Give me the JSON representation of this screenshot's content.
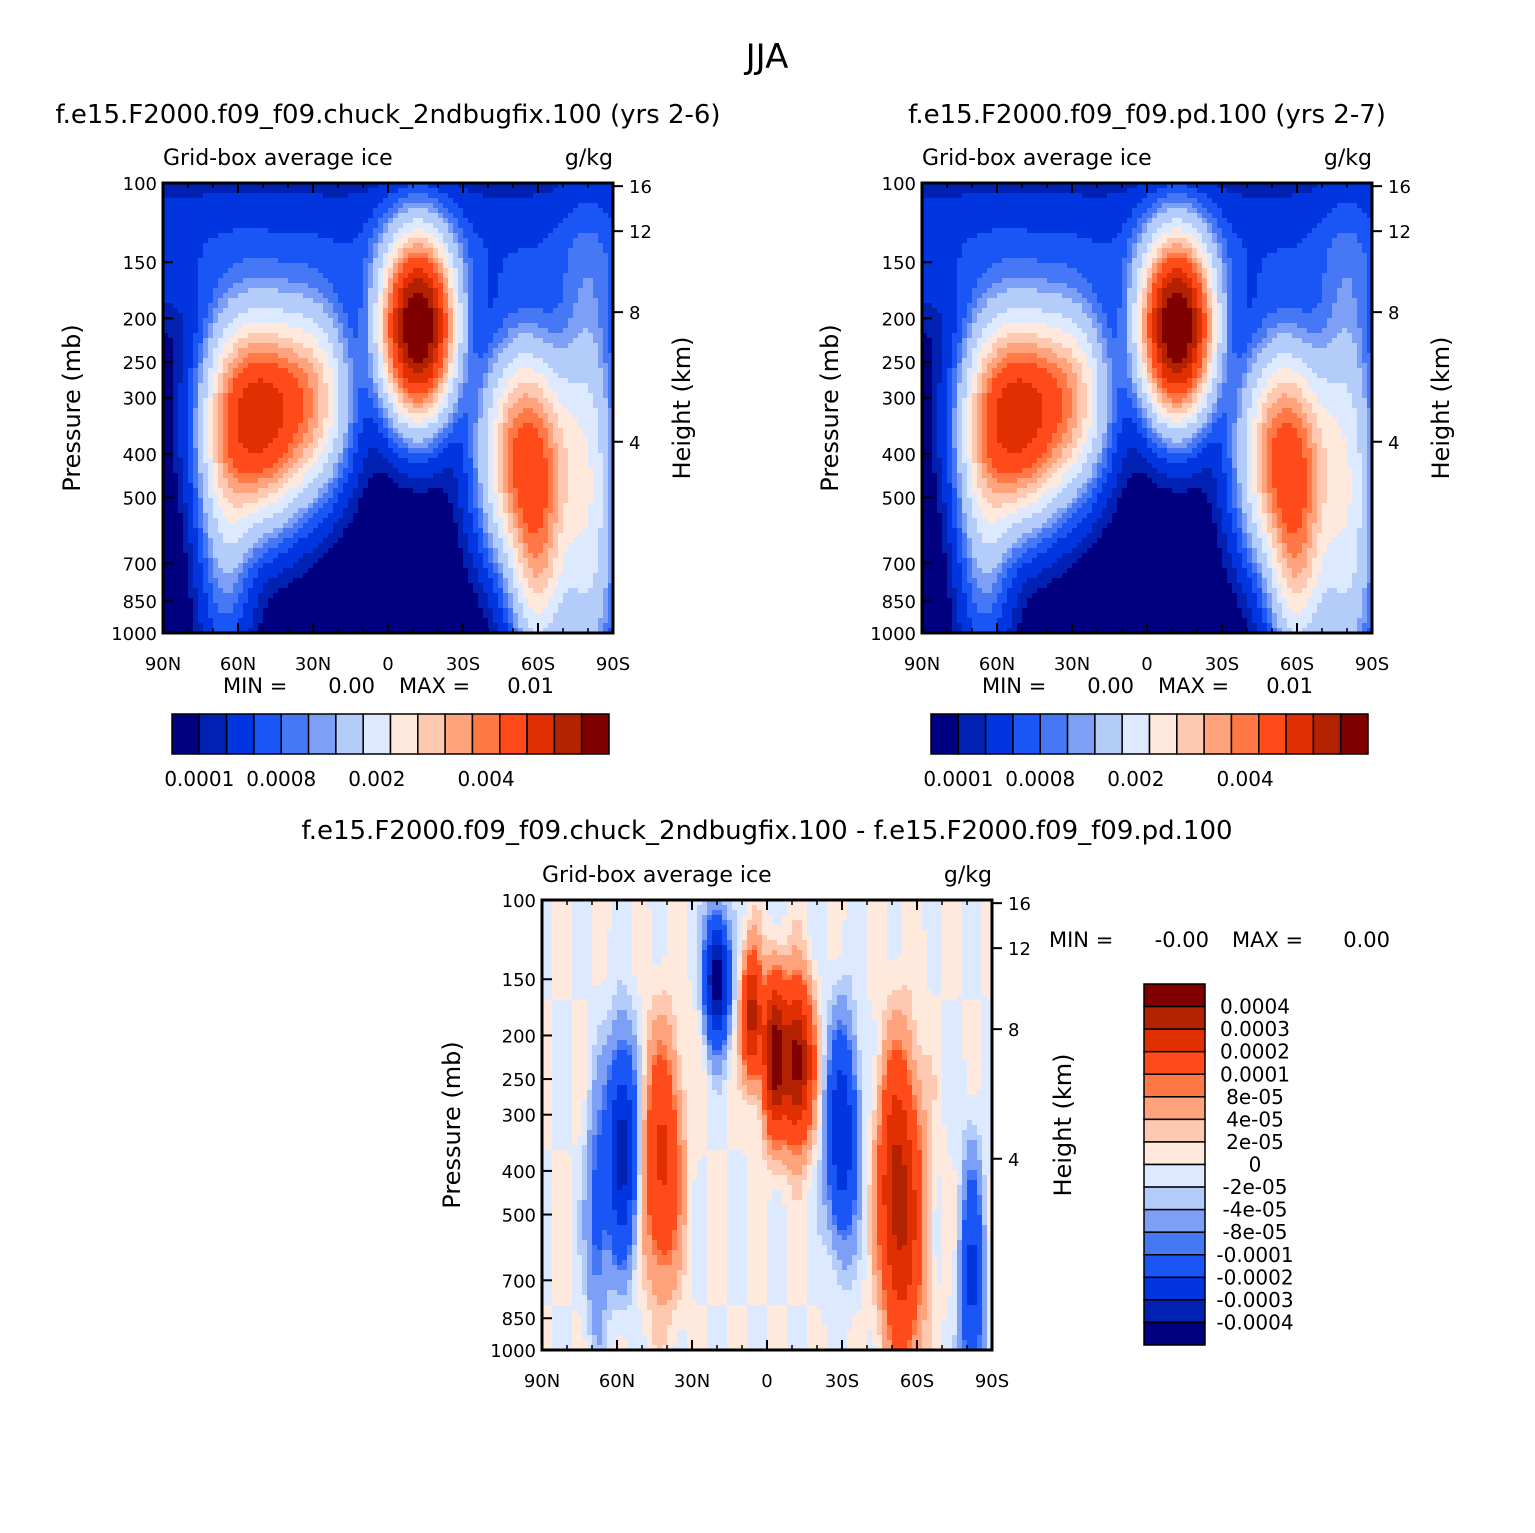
{
  "figure": {
    "title": "JJA",
    "colors": {
      "abs_scale": [
        "#000080",
        "#0021b2",
        "#0035e0",
        "#1a55f5",
        "#4678f5",
        "#7d9ff5",
        "#b4ccfa",
        "#dce9ff",
        "#ffe9dc",
        "#ffc8b0",
        "#ffa37d",
        "#ff7846",
        "#ff4b1a",
        "#e02f00",
        "#b22100",
        "#800000"
      ],
      "diff_scale": [
        "#000080",
        "#0021b2",
        "#0035e0",
        "#1a55f5",
        "#4678f5",
        "#7d9ff5",
        "#b4ccfa",
        "#dce9ff",
        "#ffe9dc",
        "#ffc8b0",
        "#ffa37d",
        "#ff7846",
        "#ff4b1a",
        "#e02f00",
        "#b22100",
        "#800000"
      ]
    }
  },
  "chart_data": [
    {
      "type": "heatmap",
      "title": "f.e15.F2000.f09_f09.chuck_2ndbugfix.100 (yrs 2-6)",
      "left_subtitle": "Grid-box average ice",
      "right_subtitle": "g/kg",
      "ylabel": "Pressure (mb)",
      "ylabel_right": "Height (km)",
      "x_ticks": [
        "90N",
        "60N",
        "30N",
        "0",
        "30S",
        "60S",
        "90S"
      ],
      "y_ticks": [
        "100",
        "150",
        "200",
        "250",
        "300",
        "400",
        "500",
        "700",
        "850",
        "1000"
      ],
      "y_right_ticks": [
        "16",
        "12",
        "8",
        "4"
      ],
      "ylim": [
        1000,
        100
      ],
      "xlim": [
        "90N",
        "90S"
      ],
      "min_label": "MIN =",
      "min_value": "0.00",
      "max_label": "MAX =",
      "max_value": "0.01",
      "colorbar_labels": [
        "0.0001",
        "0.0008",
        "0.002",
        "0.004"
      ],
      "colorbar_levels": 16,
      "features": [
        {
          "lat": -15,
          "p": 230,
          "value": 0.007
        },
        {
          "lat": 55,
          "p": 320,
          "value": 0.005
        },
        {
          "lat": -55,
          "p": 380,
          "value": 0.004
        }
      ]
    },
    {
      "type": "heatmap",
      "title": "f.e15.F2000.f09_f09.pd.100 (yrs 2-7)",
      "left_subtitle": "Grid-box average ice",
      "right_subtitle": "g/kg",
      "ylabel": "Pressure (mb)",
      "ylabel_right": "Height (km)",
      "x_ticks": [
        "90N",
        "60N",
        "30N",
        "0",
        "30S",
        "60S",
        "90S"
      ],
      "y_ticks": [
        "100",
        "150",
        "200",
        "250",
        "300",
        "400",
        "500",
        "700",
        "850",
        "1000"
      ],
      "y_right_ticks": [
        "16",
        "12",
        "8",
        "4"
      ],
      "ylim": [
        1000,
        100
      ],
      "xlim": [
        "90N",
        "90S"
      ],
      "min_label": "MIN =",
      "min_value": "0.00",
      "max_label": "MAX =",
      "max_value": "0.01",
      "colorbar_labels": [
        "0.0001",
        "0.0008",
        "0.002",
        "0.004"
      ],
      "colorbar_levels": 16,
      "features": [
        {
          "lat": -15,
          "p": 230,
          "value": 0.007
        },
        {
          "lat": 55,
          "p": 320,
          "value": 0.005
        },
        {
          "lat": -55,
          "p": 380,
          "value": 0.004
        }
      ]
    },
    {
      "type": "heatmap",
      "title": "f.e15.F2000.f09_f09.chuck_2ndbugfix.100 - f.e15.F2000.f09_f09.pd.100",
      "left_subtitle": "Grid-box average ice",
      "right_subtitle": "g/kg",
      "ylabel": "Pressure (mb)",
      "ylabel_right": "Height (km)",
      "x_ticks": [
        "90N",
        "60N",
        "30N",
        "0",
        "30S",
        "60S",
        "90S"
      ],
      "y_ticks": [
        "100",
        "150",
        "200",
        "250",
        "300",
        "400",
        "500",
        "700",
        "850",
        "1000"
      ],
      "y_right_ticks": [
        "16",
        "12",
        "8",
        "4"
      ],
      "ylim": [
        1000,
        100
      ],
      "xlim": [
        "90N",
        "90S"
      ],
      "min_label": "MIN =",
      "min_value": "-0.00",
      "max_label": "MAX =",
      "max_value": "0.00",
      "colorbar_labels": [
        "0.0004",
        "0.0003",
        "0.0002",
        "0.0001",
        "8e-05",
        "4e-05",
        "2e-05",
        "0",
        "-2e-05",
        "-4e-05",
        "-8e-05",
        "-0.0001",
        "-0.0002",
        "-0.0003",
        "-0.0004"
      ],
      "colorbar_levels": 16
    }
  ]
}
